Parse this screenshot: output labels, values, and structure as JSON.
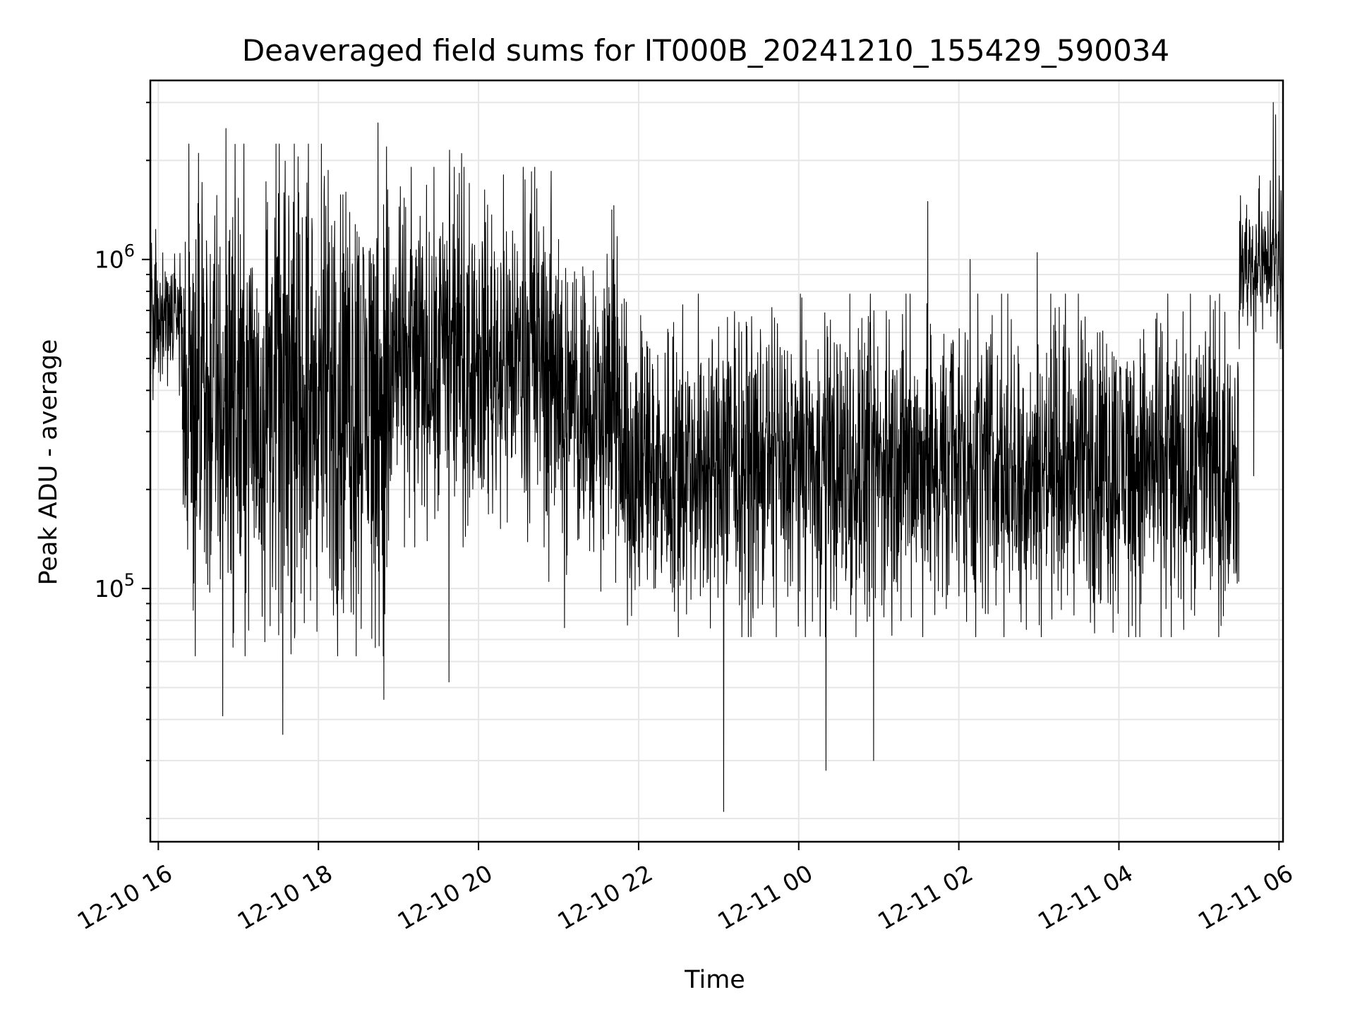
{
  "chart_data": {
    "type": "line",
    "title": "Deaveraged field sums for IT000B_20241210_155429_590034",
    "xlabel": "Time",
    "ylabel": "Peak ADU - average",
    "x_axis": {
      "kind": "datetime",
      "range": [
        "2024-12-10T15:54",
        "2024-12-11T06:03"
      ],
      "ticks": [
        {
          "value": "2024-12-10T16:00",
          "label": "12-10 16"
        },
        {
          "value": "2024-12-10T18:00",
          "label": "12-10 18"
        },
        {
          "value": "2024-12-10T20:00",
          "label": "12-10 20"
        },
        {
          "value": "2024-12-10T22:00",
          "label": "12-10 22"
        },
        {
          "value": "2024-12-11T00:00",
          "label": "12-11 00"
        },
        {
          "value": "2024-12-11T02:00",
          "label": "12-11 02"
        },
        {
          "value": "2024-12-11T04:00",
          "label": "12-11 04"
        },
        {
          "value": "2024-12-11T06:00",
          "label": "12-11 06"
        }
      ]
    },
    "y_axis": {
      "scale": "log",
      "range": [
        17000,
        3500000
      ],
      "major_ticks": [
        {
          "value": 100000,
          "label_base": "10",
          "label_exp": "5"
        },
        {
          "value": 1000000,
          "label_base": "10",
          "label_exp": "6"
        }
      ]
    },
    "grid": true,
    "legend": "none",
    "line_color": "#000000",
    "series": [
      {
        "segments": [
          {
            "start": "2024-12-10T15:54",
            "end": "2024-12-10T16:18",
            "low": 420000,
            "high": 1100000,
            "spikes_up": [],
            "spikes_down": []
          },
          {
            "start": "2024-12-10T16:18",
            "end": "2024-12-10T18:55",
            "low": 70000,
            "high": 2000000,
            "spikes_up": [
              2500000,
              2600000,
              2200000
            ],
            "spikes_down": [
              41000,
              36000,
              46000
            ]
          },
          {
            "start": "2024-12-10T18:55",
            "end": "2024-12-10T21:00",
            "low": 150000,
            "high": 1700000,
            "spikes_up": [
              2150000,
              2100000
            ],
            "spikes_down": [
              52000,
              105000
            ]
          },
          {
            "start": "2024-12-10T21:00",
            "end": "2024-12-10T21:45",
            "low": 110000,
            "high": 1300000,
            "spikes_up": [],
            "spikes_down": [
              76000
            ]
          },
          {
            "start": "2024-12-10T21:45",
            "end": "2024-12-11T05:30",
            "low": 80000,
            "high": 700000,
            "spikes_up": [
              1500000,
              1000000,
              1050000
            ],
            "spikes_down": [
              21000,
              28000,
              30000
            ]
          },
          {
            "start": "2024-12-11T05:30",
            "end": "2024-12-11T06:03",
            "low": 600000,
            "high": 1600000,
            "spikes_up": [
              3000000,
              2750000
            ],
            "spikes_down": [
              220000
            ]
          }
        ]
      }
    ]
  }
}
